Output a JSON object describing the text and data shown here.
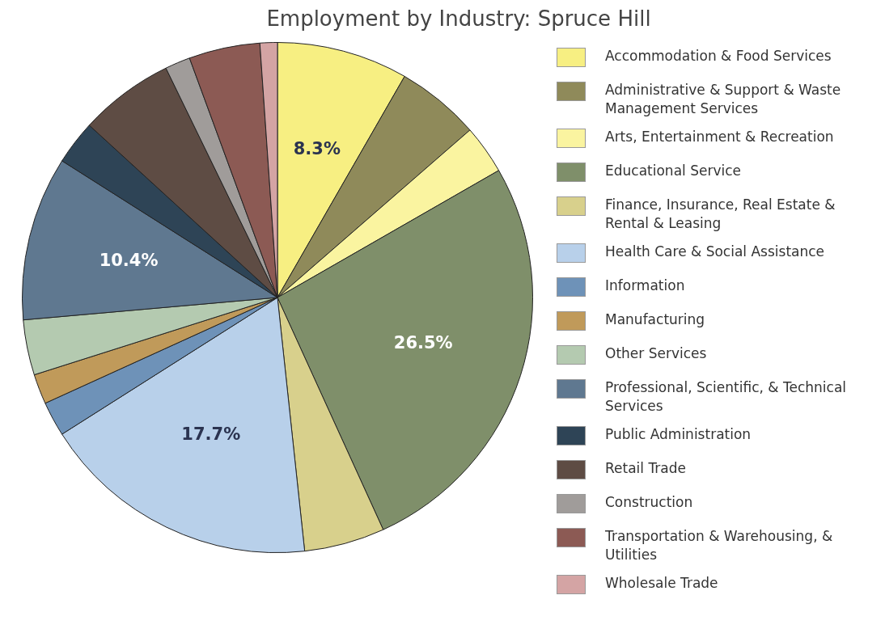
{
  "chart_data": {
    "type": "pie",
    "title": "Employment by Industry: Spruce Hill",
    "categories": [
      "Accommodation & Food Services",
      "Administrative & Support & Waste Management Services",
      "Arts, Entertainment & Recreation",
      "Educational Service",
      "Finance, Insurance, Real Estate & Rental & Leasing",
      "Health Care & Social Assistance",
      "Information",
      "Manufacturing",
      "Other Services",
      "Professional, Scientific, & Technical Services",
      "Public Administration",
      "Retail Trade",
      "Construction",
      "Transportation & Warehousing, & Utilities",
      "Wholesale Trade"
    ],
    "values": [
      8.3,
      5.3,
      3.1,
      26.5,
      5.1,
      17.7,
      2.2,
      1.9,
      3.5,
      10.4,
      2.8,
      6.0,
      1.6,
      4.5,
      1.1
    ],
    "value_labels": [
      "8.3%",
      null,
      null,
      "26.5%",
      null,
      "17.7%",
      null,
      null,
      null,
      "10.4%",
      null,
      null,
      null,
      null,
      null
    ],
    "colors": [
      "#f7ef82",
      "#8f8a5a",
      "#faf4a0",
      "#7f8f6a",
      "#d8d08c",
      "#b8d0ea",
      "#6e92b8",
      "#c09a5a",
      "#b4cab0",
      "#5f7890",
      "#2e4456",
      "#5e4c44",
      "#a09c9a",
      "#8c5a54",
      "#d4a4a4"
    ],
    "legend": "right"
  }
}
